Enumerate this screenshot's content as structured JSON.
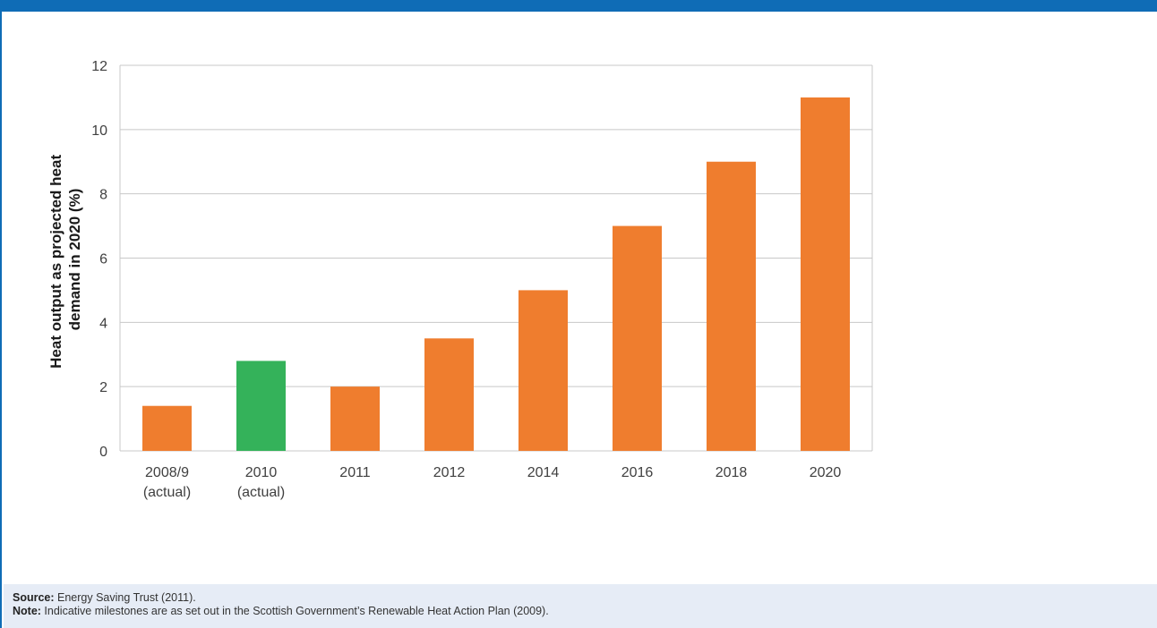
{
  "chart_data": {
    "type": "bar",
    "title": "",
    "xlabel": "",
    "ylabel_lines": [
      "Heat output as projected heat",
      "demand in 2020 (%)"
    ],
    "ylim": [
      0,
      12
    ],
    "yticks": [
      0,
      2,
      4,
      6,
      8,
      10,
      12
    ],
    "grid": true,
    "categories": [
      [
        "2008/9",
        "(actual)"
      ],
      [
        "2010",
        "(actual)"
      ],
      [
        "2011"
      ],
      [
        "2012"
      ],
      [
        "2014"
      ],
      [
        "2016"
      ],
      [
        "2018"
      ],
      [
        "2020"
      ]
    ],
    "values": [
      1.4,
      2.8,
      2.0,
      3.5,
      5.0,
      7.0,
      9.0,
      11.0
    ],
    "bar_colors": [
      "#ef7d2e",
      "#34b25a",
      "#ef7d2e",
      "#ef7d2e",
      "#ef7d2e",
      "#ef7d2e",
      "#ef7d2e",
      "#ef7d2e"
    ]
  },
  "footer": {
    "source_label": "Source:",
    "source_text": " Energy Saving Trust (2011).",
    "note_label": "Note:",
    "note_text": " Indicative milestones are as set out in the Scottish Government’s Renewable Heat Action Plan (2009)."
  },
  "colors": {
    "accent": "#0f6cb6",
    "footer_bg": "#e6ecf6",
    "grid": "#c8c8c8"
  }
}
